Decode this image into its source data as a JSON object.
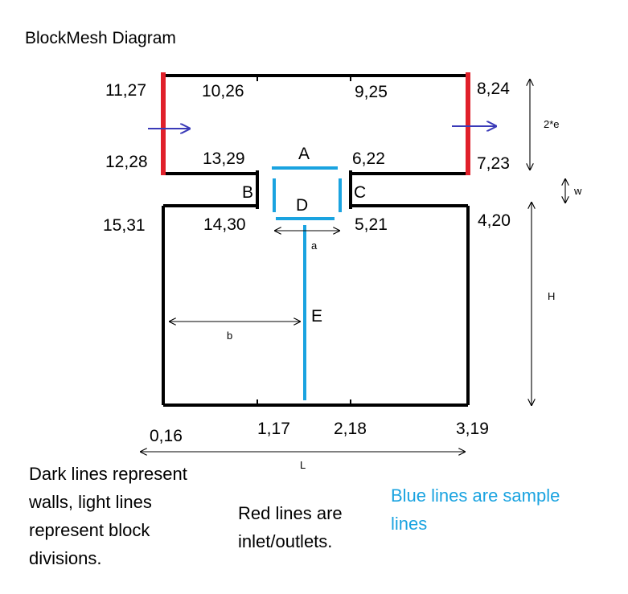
{
  "title": "BlockMesh  Diagram",
  "vertices": {
    "v0": "0,16",
    "v1": "1,17",
    "v2": "2,18",
    "v3": "3,19",
    "v4": "4,20",
    "v5": "5,21",
    "v6": "6,22",
    "v7": "7,23",
    "v8": "8,24",
    "v9": "9,25",
    "v10": "10,26",
    "v11": "11,27",
    "v12": "12,28",
    "v13": "13,29",
    "v14": "14,30",
    "v15": "15,31"
  },
  "lines": {
    "A": "A",
    "B": "B",
    "C": "C",
    "D": "D",
    "E": "E"
  },
  "dimensions": {
    "a": "a",
    "b": "b",
    "two_e": "2*e",
    "w": "w",
    "H": "H",
    "L": "L"
  },
  "notes": {
    "walls": [
      "Dark lines represent",
      "walls, light lines",
      "represent block",
      "divisions."
    ],
    "inlet": [
      "Red lines are",
      "inlet/outlets."
    ],
    "sample": [
      "Blue lines are sample",
      "lines"
    ]
  },
  "colors": {
    "wall": "#000000",
    "inlet": "#e0202a",
    "sample": "#1aa3e0",
    "flow_arrow": "#3a3ab8"
  }
}
